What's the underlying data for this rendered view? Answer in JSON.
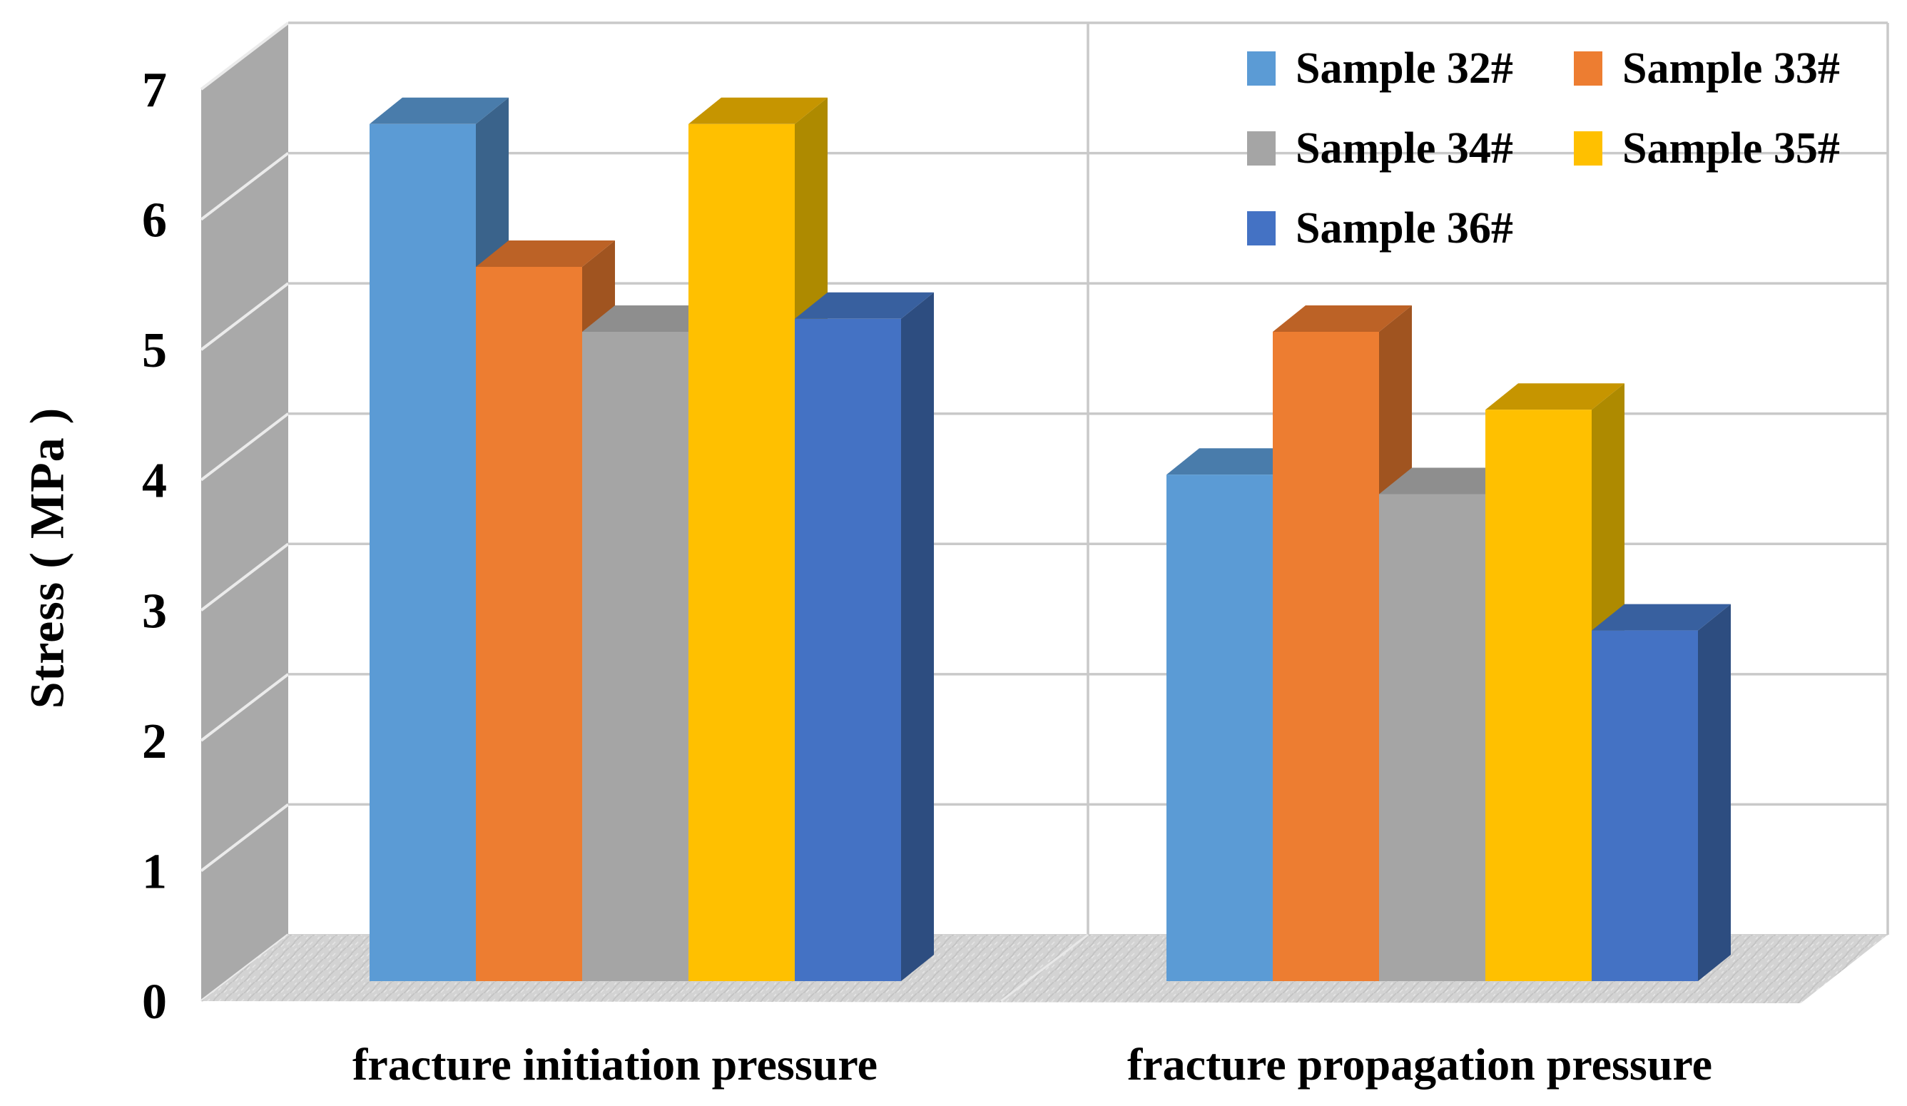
{
  "page": {
    "background": "#FFFFFF"
  },
  "chart_data": {
    "type": "bar",
    "projection": "3d-column",
    "title": "",
    "xlabel": "",
    "ylabel": "Stress ( MPa )",
    "categories": [
      "fracture initiation pressure",
      "fracture propagation pressure"
    ],
    "series": [
      {
        "name": "Sample 32#",
        "color": "#5B9BD5",
        "color_top": "#497CAB",
        "color_side": "#3A638B",
        "values": [
          6.6,
          3.9
        ]
      },
      {
        "name": "Sample 33#",
        "color": "#ED7D31",
        "color_top": "#BC6226",
        "color_side": "#A05420",
        "values": [
          5.5,
          5.0
        ]
      },
      {
        "name": "Sample 34#",
        "color": "#A5A5A5",
        "color_top": "#8E8E8E",
        "color_side": "#7C7C7C",
        "values": [
          5.0,
          3.75
        ]
      },
      {
        "name": "Sample 35#",
        "color": "#FFC000",
        "color_top": "#C69500",
        "color_side": "#AE8A00",
        "values": [
          6.6,
          4.4
        ]
      },
      {
        "name": "Sample 36#",
        "color": "#4472C4",
        "color_top": "#38609F",
        "color_side": "#2D4D80",
        "values": [
          5.1,
          2.7
        ]
      }
    ],
    "ylim": [
      0,
      7
    ],
    "yticks": [
      "0",
      "1",
      "2",
      "3",
      "4",
      "5",
      "6",
      "7"
    ],
    "grid": true,
    "legend_position": "top-right"
  },
  "palette": {
    "text": "#000000",
    "back_wall": "#FFFFFF",
    "back_gridline": "#C9C9C9",
    "side_wall": "#A9A9A9",
    "side_wall_gridline": "#EBEBEB",
    "floor": "#D3D3D3",
    "floor_speckle_dark": "#C2C2C2",
    "floor_speckle_light": "#E4E4E4",
    "floor_separator": "#E8E8E8"
  }
}
